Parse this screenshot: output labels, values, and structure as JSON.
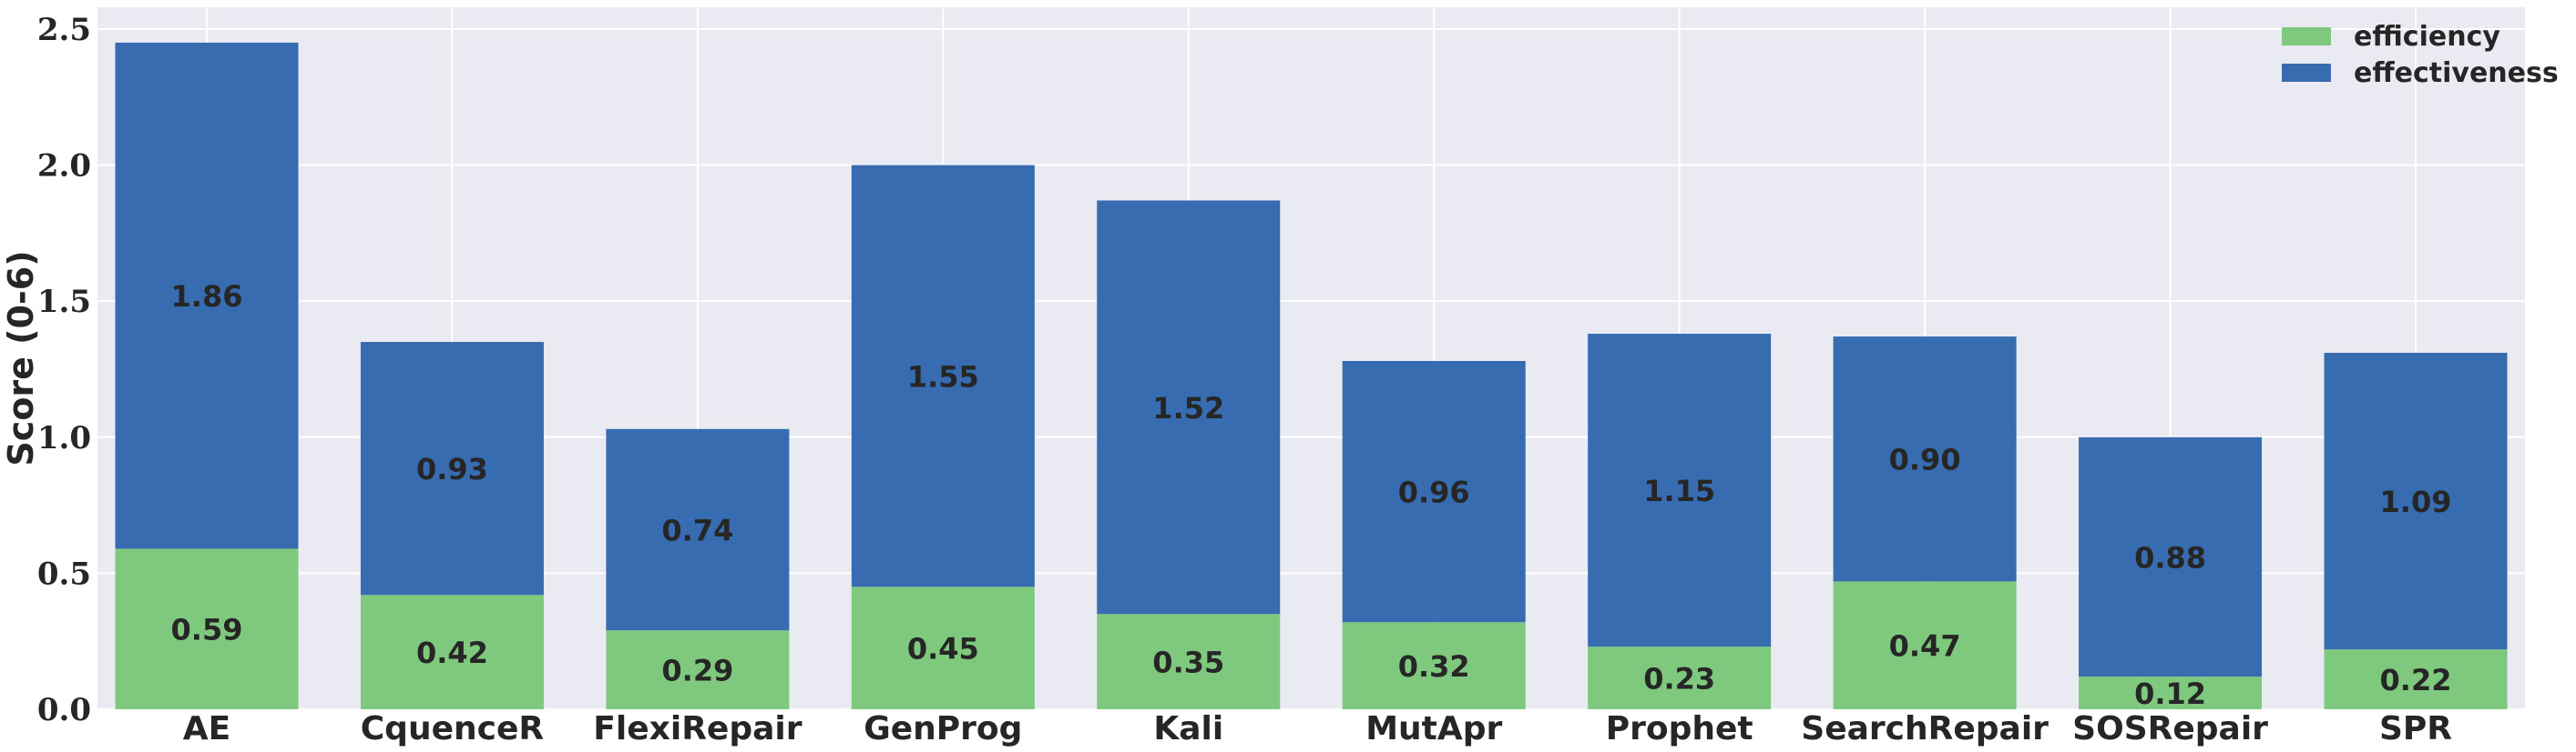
{
  "chart_data": {
    "type": "bar",
    "stacked": true,
    "categories": [
      "AE",
      "CquenceR",
      "FlexiRepair",
      "GenProg",
      "Kali",
      "MutApr",
      "Prophet",
      "SearchRepair",
      "SOSRepair",
      "SPR"
    ],
    "series": [
      {
        "name": "efficiency",
        "color": "#7fc97f",
        "values": [
          0.59,
          0.42,
          0.29,
          0.45,
          0.35,
          0.32,
          0.23,
          0.47,
          0.12,
          0.22
        ],
        "labels": [
          "0.59",
          "0.42",
          "0.29",
          "0.45",
          "0.35",
          "0.32",
          "0.23",
          "0.47",
          "0.12",
          "0.22"
        ]
      },
      {
        "name": "effectiveness",
        "color": "#386cb0",
        "values": [
          1.86,
          0.93,
          0.74,
          1.55,
          1.52,
          0.96,
          1.15,
          0.9,
          0.88,
          1.09
        ],
        "labels": [
          "1.86",
          "0.93",
          "0.74",
          "1.55",
          "1.52",
          "0.96",
          "1.15",
          "0.90",
          "0.88",
          "1.09"
        ]
      }
    ],
    "title": "",
    "xlabel": "",
    "ylabel": "Score (0-6)",
    "ylim": [
      0,
      2.58
    ],
    "yticks": [
      0.0,
      0.5,
      1.0,
      1.5,
      2.0,
      2.5
    ],
    "ytick_labels": [
      "0.0",
      "0.5",
      "1.0",
      "1.5",
      "2.0",
      "2.5"
    ],
    "grid": true,
    "legend_position": "top-right",
    "background_color": "#eaeaf2",
    "grid_color": "#ffffff"
  }
}
